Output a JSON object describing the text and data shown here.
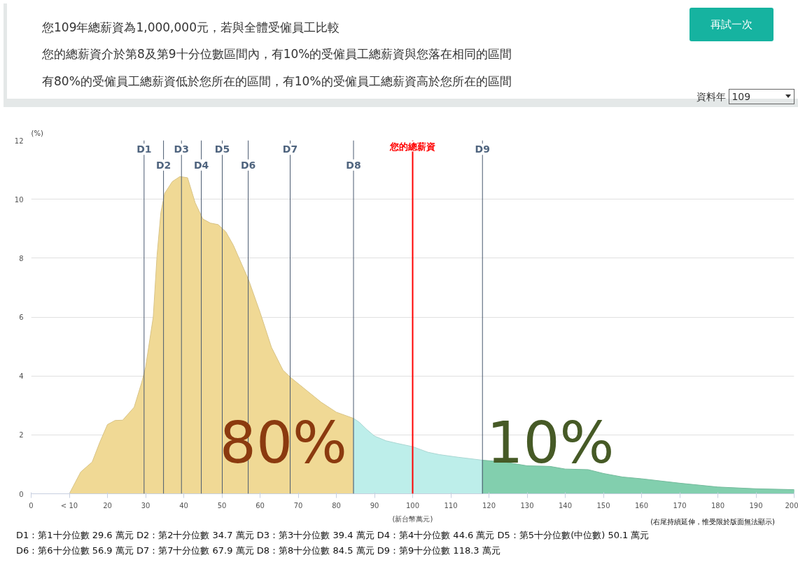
{
  "chart_data": {
    "type": "area",
    "title": "您109年總薪資為1,000,000元，若與全體受僱員工比較",
    "subtitle": "您的總薪資介於第8及第9十分位數區間內，有10%的受僱員工總薪資與您落在相同的區間",
    "xlabel": "(新台幣萬元)",
    "ylabel": "(%)",
    "xlim": [
      0,
      200
    ],
    "xticks": [
      0,
      {
        "value": 10,
        "label": "< 10"
      },
      20,
      30,
      40,
      50,
      60,
      70,
      80,
      90,
      100,
      110,
      120,
      130,
      140,
      150,
      160,
      170,
      180,
      190,
      200
    ],
    "ylim": [
      0,
      12
    ],
    "yticks": [
      0,
      2,
      4,
      6,
      8,
      10,
      12
    ],
    "grid": "y",
    "series": [
      {
        "color": "#f0d995",
        "x": [
          10,
          13,
          16,
          18,
          20,
          22,
          24,
          27,
          29,
          30,
          32,
          33,
          34,
          35,
          37,
          39,
          41,
          43,
          45,
          47,
          49,
          51,
          53,
          57,
          60,
          63,
          66,
          68,
          72,
          76,
          80,
          84.5
        ],
        "values": [
          0,
          0.74,
          1.08,
          1.75,
          2.35,
          2.49,
          2.5,
          2.94,
          3.79,
          4.3,
          6.0,
          8.1,
          9.55,
          10.2,
          10.6,
          10.77,
          10.73,
          9.88,
          9.33,
          9.19,
          9.14,
          8.9,
          8.44,
          7.26,
          6.16,
          4.97,
          4.2,
          3.95,
          3.53,
          3.11,
          2.77,
          2.56
        ]
      },
      {
        "color": "#bdeeea",
        "x": [
          84.5,
          86,
          88,
          90,
          93,
          96,
          100,
          104,
          107,
          112,
          118.3
        ],
        "values": [
          2.56,
          2.43,
          2.18,
          1.96,
          1.8,
          1.71,
          1.6,
          1.41,
          1.33,
          1.24,
          1.14
        ]
      },
      {
        "color": "#82cfae",
        "x": [
          118.3,
          124,
          130,
          136,
          140,
          146,
          150,
          155,
          160,
          170,
          180,
          190,
          200
        ],
        "values": [
          1.14,
          1.08,
          0.95,
          0.93,
          0.84,
          0.82,
          0.69,
          0.57,
          0.51,
          0.36,
          0.23,
          0.17,
          0.14
        ]
      }
    ],
    "ref_lines": [
      {
        "axis": "x",
        "value": 29.6,
        "label": "D1",
        "color": "#4a5a70"
      },
      {
        "axis": "x",
        "value": 34.7,
        "label": "D2",
        "color": "#4a5a70"
      },
      {
        "axis": "x",
        "value": 39.4,
        "label": "D3",
        "color": "#4a5a70"
      },
      {
        "axis": "x",
        "value": 44.6,
        "label": "D4",
        "color": "#4a5a70"
      },
      {
        "axis": "x",
        "value": 50.1,
        "label": "D5",
        "color": "#4a5a70"
      },
      {
        "axis": "x",
        "value": 56.9,
        "label": "D6",
        "color": "#4a5a70"
      },
      {
        "axis": "x",
        "value": 67.9,
        "label": "D7",
        "color": "#4a5a70"
      },
      {
        "axis": "x",
        "value": 84.5,
        "label": "D8",
        "color": "#4a5a70"
      },
      {
        "axis": "x",
        "value": 118.3,
        "label": "D9",
        "color": "#4a5a70"
      },
      {
        "axis": "x",
        "value": 100,
        "label": "您的總薪資",
        "color": "#ff0000"
      }
    ],
    "annotations": [
      {
        "text": "80%",
        "x": 84.5,
        "y": 0.6
      },
      {
        "text": "10%",
        "x": 118.3,
        "y": 0.6
      },
      "(右尾持續延伸，惟受限於版面無法顯示)",
      "D1：第1十分位數 29.6 萬元  D2：第2十分位數 34.7 萬元  D3：第3十分位數 39.4 萬元  D4：第4十分位數 44.6 萬元  D5：第5十分位數(中位數) 50.1 萬元",
      "D6：第6十分位數 56.9 萬元  D7：第7十分位數 67.9 萬元  D8：第8十分位數 84.5 萬元  D9：第9十分位數 118.3 萬元",
      "再試一次",
      "資料年",
      "109",
      "有80%的受僱員工總薪資低於您所在的區間，有10%的受僱員工總薪資高於您所在的區間"
    ]
  }
}
